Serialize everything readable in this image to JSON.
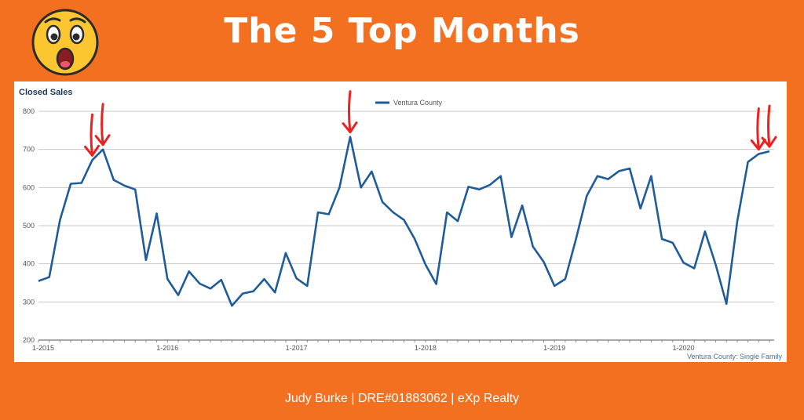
{
  "header": {
    "title": "The 5 Top Months",
    "emoji_icon": "astonished-face-icon"
  },
  "footer": {
    "text": "Judy Burke | DRE#01883062 | eXp Realty"
  },
  "colors": {
    "background": "#f37021",
    "line": "#1f5c99",
    "arrow": "#e8231f",
    "text": "#ffffff"
  },
  "chart_data": {
    "type": "line",
    "title": "Closed Sales",
    "caption": "Ventura County: Single Family",
    "legend": "top-center",
    "grid": true,
    "ylim": [
      200,
      800
    ],
    "yticks": [
      200,
      300,
      400,
      500,
      600,
      700,
      800
    ],
    "xtick_labels": [
      "1-2015",
      "1-2016",
      "1-2017",
      "1-2018",
      "1-2019",
      "1-2020"
    ],
    "xtick_index": [
      0,
      12,
      24,
      36,
      48,
      60
    ],
    "series": [
      {
        "name": "Ventura County",
        "values": [
          355,
          365,
          515,
          610,
          612,
          672,
          700,
          620,
          605,
          595,
          410,
          532,
          360,
          318,
          380,
          348,
          335,
          358,
          290,
          322,
          328,
          360,
          325,
          428,
          362,
          342,
          535,
          530,
          600,
          733,
          600,
          642,
          562,
          535,
          515,
          465,
          398,
          347,
          535,
          512,
          602,
          595,
          607,
          630,
          470,
          553,
          445,
          405,
          342,
          360,
          465,
          578,
          630,
          622,
          643,
          650,
          545,
          630,
          465,
          455,
          403,
          388,
          485,
          398,
          295,
          510,
          667,
          688,
          695
        ]
      }
    ],
    "annotations": [
      "arrow",
      "arrow",
      "arrow",
      "arrow",
      "arrow"
    ],
    "top_months": [
      5,
      6,
      29,
      67,
      68
    ]
  }
}
